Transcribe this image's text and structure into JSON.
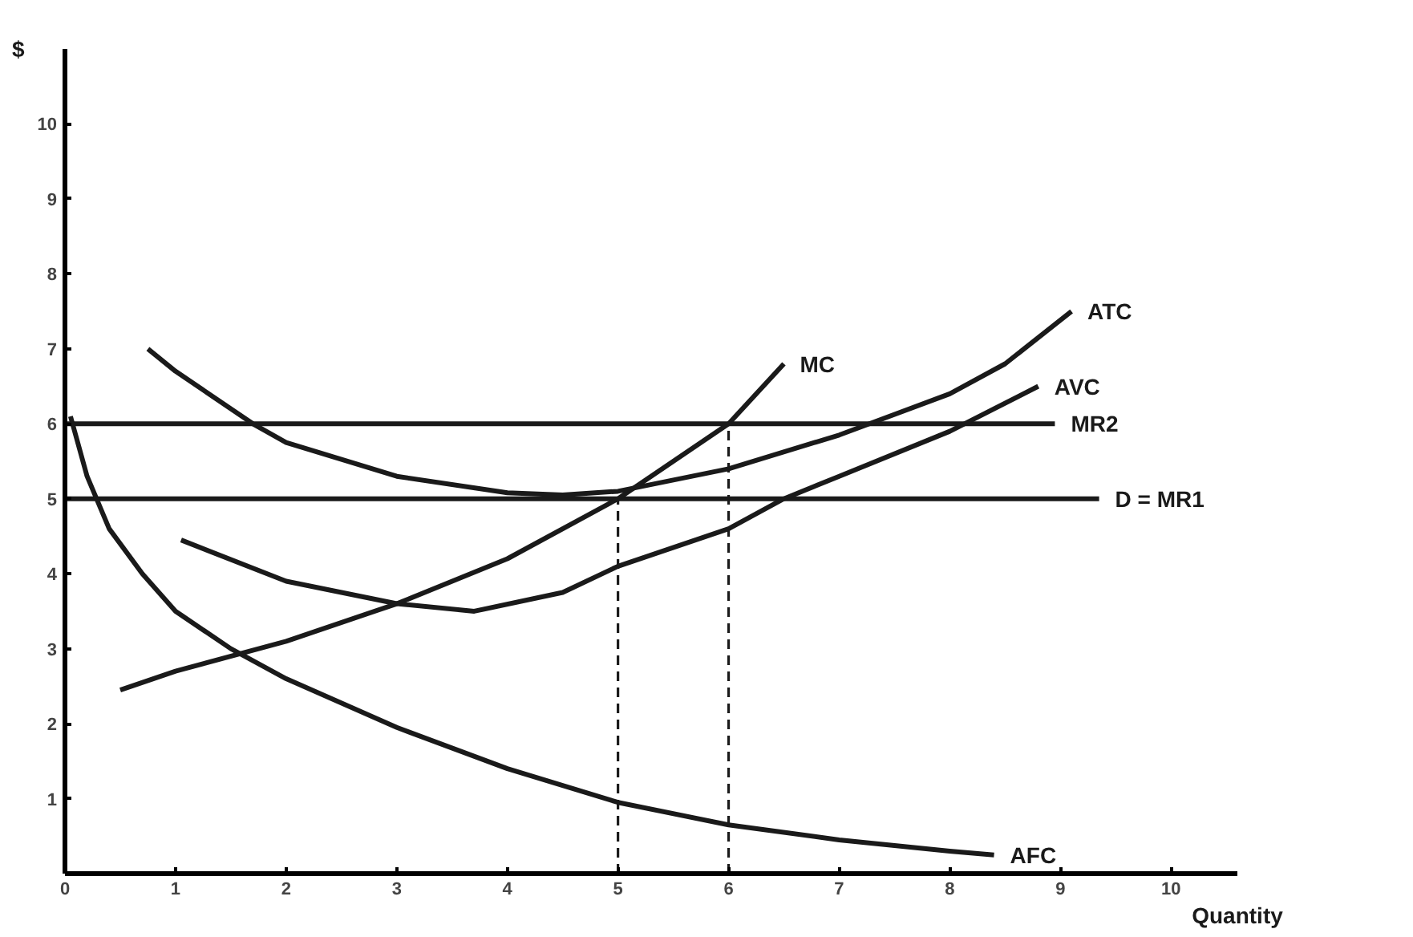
{
  "chart_data": {
    "type": "line",
    "xlabel": "Quantity",
    "ylabel": "$",
    "xlim": [
      0,
      10.6
    ],
    "ylim": [
      0,
      11
    ],
    "xticks": [
      0,
      1,
      2,
      3,
      4,
      5,
      6,
      7,
      8,
      9,
      10
    ],
    "yticks": [
      1,
      2,
      3,
      4,
      5,
      6,
      7,
      8,
      9,
      10
    ],
    "grid": false,
    "legend": false,
    "marker": "none",
    "line_style": "solid",
    "series": [
      {
        "name": "MR2",
        "color": "#1a1a1a",
        "x": [
          0,
          8.95
        ],
        "values": [
          6,
          6
        ]
      },
      {
        "name": "D = MR1",
        "color": "#1a1a1a",
        "x": [
          0,
          9.35
        ],
        "values": [
          5,
          5
        ]
      },
      {
        "name": "MC",
        "color": "#1a1a1a",
        "x": [
          0.5,
          1,
          2,
          3,
          4,
          5,
          5.5,
          6,
          6.5
        ],
        "values": [
          2.45,
          2.7,
          3.1,
          3.6,
          4.2,
          5,
          5.5,
          6,
          6.8
        ]
      },
      {
        "name": "ATC",
        "color": "#1a1a1a",
        "x": [
          0.75,
          1,
          1.7,
          2,
          3,
          4,
          4.5,
          5,
          6,
          7,
          8,
          8.5,
          9.1
        ],
        "values": [
          7,
          6.7,
          6,
          5.75,
          5.3,
          5.08,
          5.05,
          5.1,
          5.4,
          5.85,
          6.4,
          6.8,
          7.5
        ]
      },
      {
        "name": "AVC",
        "color": "#1a1a1a",
        "x": [
          1.05,
          2,
          3,
          3.7,
          4.5,
          5,
          6,
          6.5,
          7,
          8,
          8.8
        ],
        "values": [
          4.45,
          3.9,
          3.6,
          3.5,
          3.75,
          4.1,
          4.6,
          5,
          5.3,
          5.9,
          6.5
        ]
      },
      {
        "name": "AFC",
        "color": "#1a1a1a",
        "x": [
          0.05,
          0.2,
          0.4,
          0.7,
          1,
          1.5,
          2,
          3,
          4,
          5,
          6,
          7,
          8,
          8.4
        ],
        "values": [
          6.1,
          5.3,
          4.6,
          4,
          3.5,
          3,
          2.6,
          1.95,
          1.4,
          0.95,
          0.65,
          0.45,
          0.3,
          0.25
        ]
      },
      {
        "color": "#1a1a1a",
        "x": [
          5,
          5
        ],
        "values": [
          0,
          5
        ],
        "line_style": "dashed"
      },
      {
        "color": "#1a1a1a",
        "x": [
          6,
          6
        ],
        "values": [
          0,
          6
        ],
        "line_style": "dashed"
      }
    ]
  }
}
